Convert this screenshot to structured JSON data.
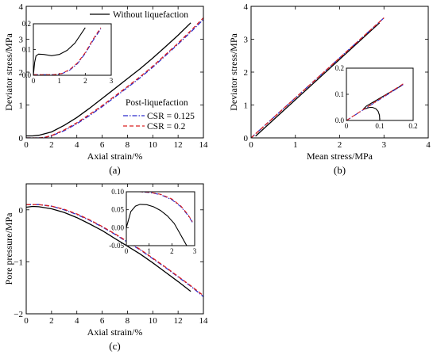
{
  "chart_data": [
    {
      "id": "a",
      "type": "line",
      "panel_label": "(a)",
      "xlabel": "Axial strain/%",
      "ylabel": "Deviator stress/MPa",
      "xlim": [
        0,
        14
      ],
      "ylim": [
        0,
        4
      ],
      "xticks": [
        0,
        2,
        4,
        6,
        8,
        10,
        12,
        14
      ],
      "yticks": [
        0,
        1,
        2,
        3,
        4
      ],
      "series": [
        {
          "name": "Without liquefaction",
          "color": "#000000",
          "dash": "solid",
          "x": [
            0,
            0.5,
            1,
            2,
            3,
            4,
            5,
            6,
            7,
            8,
            9,
            10,
            11,
            12,
            13
          ],
          "y": [
            0.06,
            0.06,
            0.08,
            0.18,
            0.38,
            0.62,
            0.9,
            1.2,
            1.5,
            1.8,
            2.1,
            2.43,
            2.77,
            3.12,
            3.5
          ]
        },
        {
          "name": "CSR = 0.125",
          "color": "#2b2bcc",
          "dash": "dashdot",
          "x": [
            0,
            1,
            1.5,
            2,
            3,
            4,
            5,
            6,
            7,
            8,
            9,
            10,
            11,
            12,
            13,
            14
          ],
          "y": [
            0,
            0,
            0.02,
            0.06,
            0.22,
            0.43,
            0.68,
            0.95,
            1.24,
            1.53,
            1.83,
            2.15,
            2.5,
            2.85,
            3.22,
            3.6
          ]
        },
        {
          "name": "CSR = 0.2",
          "color": "#d92020",
          "dash": "dashed",
          "x": [
            0,
            1,
            1.5,
            2,
            3,
            4,
            5,
            6,
            7,
            8,
            9,
            10,
            11,
            12,
            13,
            14
          ],
          "y": [
            0,
            0,
            0.02,
            0.07,
            0.24,
            0.46,
            0.71,
            0.98,
            1.27,
            1.56,
            1.86,
            2.18,
            2.53,
            2.88,
            3.26,
            3.65
          ]
        }
      ],
      "legend": {
        "top_entry": "Without liquefaction",
        "group_title": "Post-liquefaction",
        "group_entries": [
          "CSR = 0.125",
          "CSR = 0.2"
        ]
      },
      "inset": {
        "xlim": [
          0,
          3
        ],
        "ylim": [
          0,
          0.2
        ],
        "xticks": [
          0,
          1,
          2,
          3
        ],
        "yticks": [
          0.0,
          0.1,
          0.2
        ],
        "ytick_labels": [
          "0.0",
          "0.1",
          "0.2"
        ],
        "series": [
          {
            "color": "#000000",
            "dash": "solid",
            "x": [
              0,
              0.05,
              0.1,
              0.2,
              0.4,
              0.7,
              1.0,
              1.3,
              1.6,
              2.0
            ],
            "y": [
              0,
              0.05,
              0.075,
              0.082,
              0.081,
              0.076,
              0.081,
              0.097,
              0.125,
              0.185
            ]
          },
          {
            "color": "#2b2bcc",
            "dash": "dashdot",
            "x": [
              0,
              0.8,
              1.1,
              1.4,
              1.7,
              2.0,
              2.3,
              2.6
            ],
            "y": [
              0.002,
              0.002,
              0.006,
              0.02,
              0.045,
              0.085,
              0.135,
              0.18
            ]
          },
          {
            "color": "#d92020",
            "dash": "dashed",
            "x": [
              0,
              0.8,
              1.1,
              1.4,
              1.7,
              2.0,
              2.3,
              2.6
            ],
            "y": [
              0.002,
              0.002,
              0.007,
              0.022,
              0.048,
              0.088,
              0.14,
              0.185
            ]
          }
        ]
      }
    },
    {
      "id": "b",
      "type": "line",
      "panel_label": "(b)",
      "xlabel": "Mean stress/MPa",
      "ylabel": "Deviator stress/MPa",
      "xlim": [
        0,
        4
      ],
      "ylim": [
        0,
        4
      ],
      "xticks": [
        0,
        1,
        2,
        3,
        4
      ],
      "yticks": [
        0,
        1,
        2,
        3,
        4
      ],
      "series": [
        {
          "name": "Without liquefaction",
          "color": "#000000",
          "dash": "solid",
          "x": [
            0.1,
            2.9
          ],
          "y": [
            0.05,
            3.5
          ]
        },
        {
          "name": "CSR = 0.125",
          "color": "#2b2bcc",
          "dash": "dashdot",
          "x": [
            0,
            3.0
          ],
          "y": [
            0,
            3.65
          ]
        },
        {
          "name": "CSR = 0.2",
          "color": "#d92020",
          "dash": "dashed",
          "x": [
            0,
            3.0
          ],
          "y": [
            0,
            3.65
          ]
        }
      ],
      "inset": {
        "xlim": [
          0,
          0.2
        ],
        "ylim": [
          0,
          0.2
        ],
        "xticks": [
          0,
          0.1,
          0.2
        ],
        "yticks": [
          0.0,
          0.1,
          0.2
        ],
        "xtick_labels": [
          "0",
          "0.1",
          "0.2"
        ],
        "ytick_labels": [
          "0.0",
          "0.1",
          "0.2"
        ],
        "series": [
          {
            "color": "#000000",
            "dash": "solid",
            "x": [
              0.1,
              0.099,
              0.095,
              0.088,
              0.078,
              0.07,
              0.062,
              0.056,
              0.052,
              0.06,
              0.08,
              0.12,
              0.165
            ],
            "y": [
              0.0,
              0.02,
              0.035,
              0.045,
              0.05,
              0.05,
              0.047,
              0.044,
              0.045,
              0.055,
              0.07,
              0.1,
              0.133
            ]
          },
          {
            "color": "#2b2bcc",
            "dash": "dashdot",
            "x": [
              0,
              0.17
            ],
            "y": [
              0,
              0.137
            ]
          },
          {
            "color": "#d92020",
            "dash": "dashed",
            "x": [
              0,
              0.17
            ],
            "y": [
              0,
              0.14
            ]
          }
        ]
      }
    },
    {
      "id": "c",
      "type": "line",
      "panel_label": "(c)",
      "xlabel": "Axial strain/%",
      "ylabel": "Pore pressure/MPa",
      "xlim": [
        0,
        14
      ],
      "ylim": [
        -2,
        0.5
      ],
      "xticks": [
        0,
        2,
        4,
        6,
        8,
        10,
        12,
        14
      ],
      "yticks": [
        -2,
        -1,
        0
      ],
      "series": [
        {
          "name": "Without liquefaction",
          "color": "#000000",
          "dash": "solid",
          "x": [
            0,
            0.5,
            1,
            2,
            3,
            4,
            5,
            6,
            7,
            8,
            9,
            10,
            11,
            12,
            13
          ],
          "y": [
            0.05,
            0.065,
            0.06,
            0.02,
            -0.05,
            -0.15,
            -0.27,
            -0.4,
            -0.55,
            -0.7,
            -0.85,
            -1.02,
            -1.2,
            -1.38,
            -1.57
          ]
        },
        {
          "name": "CSR = 0.125",
          "color": "#2b2bcc",
          "dash": "dashdot",
          "x": [
            0,
            0.5,
            1,
            2,
            3,
            4,
            5,
            6,
            7,
            8,
            9,
            10,
            11,
            12,
            13,
            14
          ],
          "y": [
            0.1,
            0.1,
            0.1,
            0.07,
            0.0,
            -0.09,
            -0.2,
            -0.33,
            -0.47,
            -0.62,
            -0.77,
            -0.94,
            -1.11,
            -1.29,
            -1.47,
            -1.67
          ]
        },
        {
          "name": "CSR = 0.2",
          "color": "#d92020",
          "dash": "dashed",
          "x": [
            0,
            0.5,
            1,
            2,
            3,
            4,
            5,
            6,
            7,
            8,
            9,
            10,
            11,
            12,
            13,
            14
          ],
          "y": [
            0.1,
            0.1,
            0.1,
            0.07,
            0.01,
            -0.08,
            -0.19,
            -0.32,
            -0.46,
            -0.61,
            -0.76,
            -0.93,
            -1.1,
            -1.28,
            -1.46,
            -1.65
          ]
        }
      ],
      "inset": {
        "xlim": [
          0,
          3
        ],
        "ylim": [
          -0.05,
          0.1
        ],
        "xticks": [
          0,
          1,
          2,
          3
        ],
        "yticks": [
          -0.05,
          0.0,
          0.05,
          0.1
        ],
        "ytick_labels": [
          "-0.05",
          "0.00",
          "0.05",
          "0.10"
        ],
        "series": [
          {
            "color": "#000000",
            "dash": "solid",
            "x": [
              0,
              0.2,
              0.4,
              0.6,
              0.9,
              1.2,
              1.5,
              1.8,
              2.1,
              2.3,
              2.5,
              2.65
            ],
            "y": [
              0.0,
              0.045,
              0.06,
              0.065,
              0.064,
              0.058,
              0.048,
              0.033,
              0.012,
              -0.01,
              -0.033,
              -0.05
            ]
          },
          {
            "color": "#2b2bcc",
            "dash": "dashdot",
            "x": [
              0,
              0.6,
              1.0,
              1.5,
              2.0,
              2.4,
              2.7,
              2.9
            ],
            "y": [
              0.1,
              0.1,
              0.098,
              0.092,
              0.078,
              0.058,
              0.035,
              0.015
            ]
          },
          {
            "color": "#d92020",
            "dash": "dashed",
            "x": [
              0,
              0.6,
              1.0,
              1.5,
              2.0,
              2.4,
              2.7,
              2.9
            ],
            "y": [
              0.1,
              0.1,
              0.099,
              0.093,
              0.08,
              0.06,
              0.037,
              0.017
            ]
          }
        ]
      }
    }
  ]
}
